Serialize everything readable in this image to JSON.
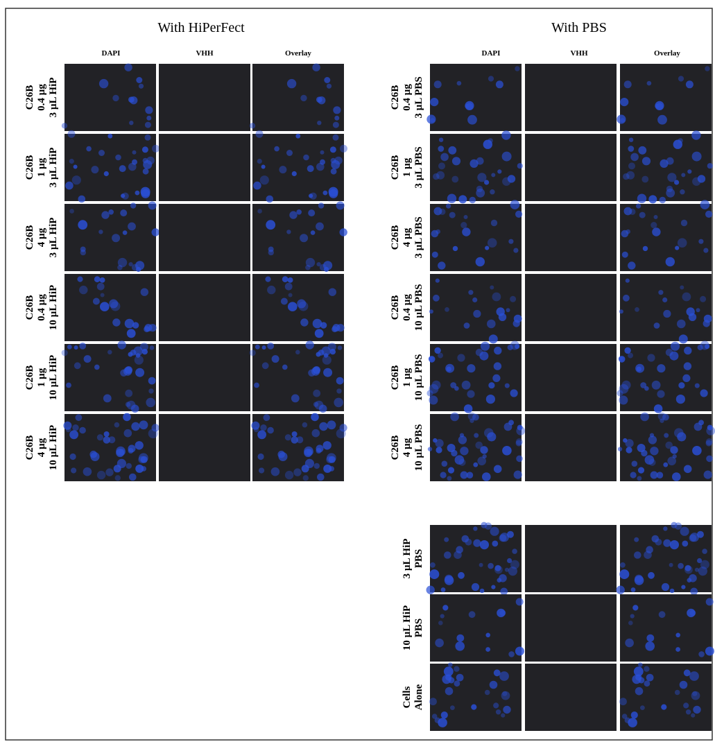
{
  "left": {
    "title": "With HiPerFect",
    "columns": [
      "DAPI",
      "VHH",
      "Overlay"
    ],
    "rows": [
      [
        "C26B",
        "0.4 µg",
        "3 µL HiP"
      ],
      [
        "C26B",
        "1 µg",
        "3 µL HiP"
      ],
      [
        "C26B",
        "4 µg",
        "3 µL HiP"
      ],
      [
        "C26B",
        "0.4 µg",
        "10 µL HiP"
      ],
      [
        "C26B",
        "1 µg",
        "10 µL HiP"
      ],
      [
        "C26B",
        "4 µg",
        "10 µL HiP"
      ]
    ]
  },
  "right": {
    "title": "With PBS",
    "columns": [
      "DAPI",
      "VHH",
      "Overlay"
    ],
    "rows": [
      [
        "C26B",
        "0.4 µg",
        "3 µL PBS"
      ],
      [
        "C26B",
        "1 µg",
        "3 µL PBS"
      ],
      [
        "C26B",
        "4 µg",
        "3 µL PBS"
      ],
      [
        "C26B",
        "0.4 µg",
        "10 µL PBS"
      ],
      [
        "C26B",
        "1 µg",
        "10 µL PBS"
      ],
      [
        "C26B",
        "4 µg",
        "10 µL PBS"
      ]
    ],
    "control_rows": [
      [
        "3 µL HiP",
        "PBS"
      ],
      [
        "10 µL HiP",
        "PBS"
      ],
      [
        "Cells",
        "Alone"
      ]
    ]
  }
}
